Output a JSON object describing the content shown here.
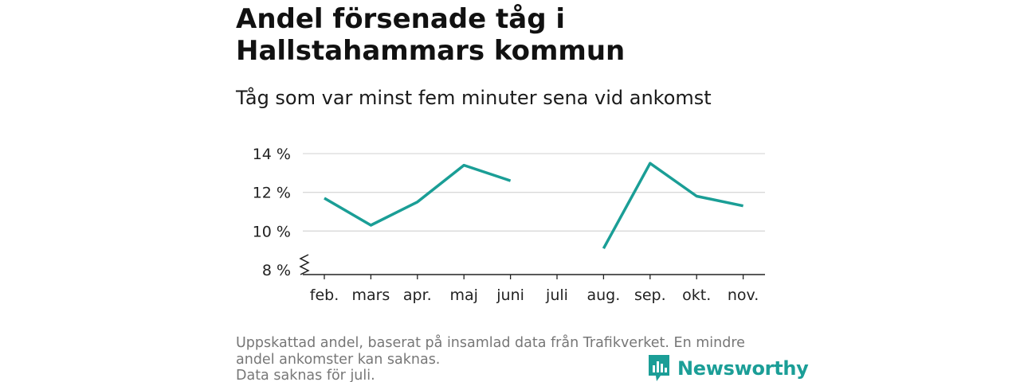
{
  "header": {
    "title": "Andel försenade tåg i Hallstahammars kommun",
    "subtitle": "Tåg som var minst fem minuter sena vid ankomst"
  },
  "chart_data": {
    "type": "line",
    "categories": [
      "feb.",
      "mars",
      "apr.",
      "maj",
      "juni",
      "juli",
      "aug.",
      "sep.",
      "okt.",
      "nov."
    ],
    "series": [
      {
        "values": [
          11.7,
          10.3,
          11.5,
          13.4,
          12.6,
          null,
          9.1,
          13.5,
          11.8,
          11.3
        ],
        "color": "#1a9e96"
      }
    ],
    "y_ticks": [
      8,
      10,
      12,
      14
    ],
    "y_tick_labels": [
      "8 %",
      "10 %",
      "12 %",
      "14 %"
    ],
    "ylim": [
      8,
      14
    ],
    "y_axis_break": true,
    "grid": true,
    "xlabel": "",
    "ylabel": ""
  },
  "footnote": {
    "line1": "Uppskattad andel, baserat på insamlad data från Trafikverket. En mindre andel ankomster kan saknas.",
    "line2": "Data saknas för juli."
  },
  "brand": {
    "name": "Newsworthy",
    "icon": "newsworthy-logo-icon",
    "color": "#1b9e97"
  }
}
